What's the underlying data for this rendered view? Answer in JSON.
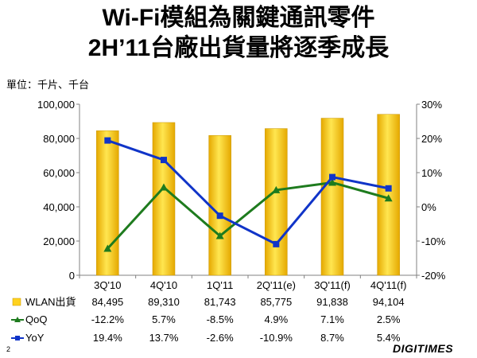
{
  "header": {
    "line1": "Wi-Fi模組為關鍵通訊零件",
    "line2": "2H’11台廠出貨量將逐季成長",
    "unit": "單位：千片、千台"
  },
  "footer": {
    "page_number": "2",
    "brand": "DIGITIMES"
  },
  "chart_data": {
    "type": "bar",
    "categories": [
      "3Q'10",
      "4Q'10",
      "1Q'11",
      "2Q'11(e)",
      "3Q'11(f)",
      "4Q'11(f)"
    ],
    "y_left": {
      "ticks": [
        "0",
        "20,000",
        "40,000",
        "60,000",
        "80,000",
        "100,000"
      ],
      "ylim": [
        0,
        100000
      ]
    },
    "y_right": {
      "ticks": [
        "-20%",
        "-10%",
        "0%",
        "10%",
        "20%",
        "30%"
      ],
      "ylim": [
        -20,
        30
      ]
    },
    "series": [
      {
        "name": "WLAN出貨",
        "type": "bar",
        "axis": "left",
        "values": [
          84495,
          89310,
          81743,
          85775,
          91838,
          94104
        ],
        "labels": [
          "84,495",
          "89,310",
          "81,743",
          "85,775",
          "91,838",
          "94,104"
        ],
        "color": "#FFD21F"
      },
      {
        "name": "QoQ",
        "type": "line",
        "axis": "right",
        "marker": "triangle",
        "values": [
          -12.2,
          5.7,
          -8.5,
          4.9,
          7.1,
          2.5
        ],
        "labels": [
          "-12.2%",
          "5.7%",
          "-8.5%",
          "4.9%",
          "7.1%",
          "2.5%"
        ],
        "color": "#1E7B1E"
      },
      {
        "name": "YoY",
        "type": "line",
        "axis": "right",
        "marker": "square",
        "values": [
          19.4,
          13.7,
          -2.6,
          -10.9,
          8.7,
          5.4
        ],
        "labels": [
          "19.4%",
          "13.7%",
          "-2.6%",
          "-10.9%",
          "8.7%",
          "5.4%"
        ],
        "color": "#1034C8"
      }
    ],
    "legend": "data-table-below",
    "grid": false
  }
}
